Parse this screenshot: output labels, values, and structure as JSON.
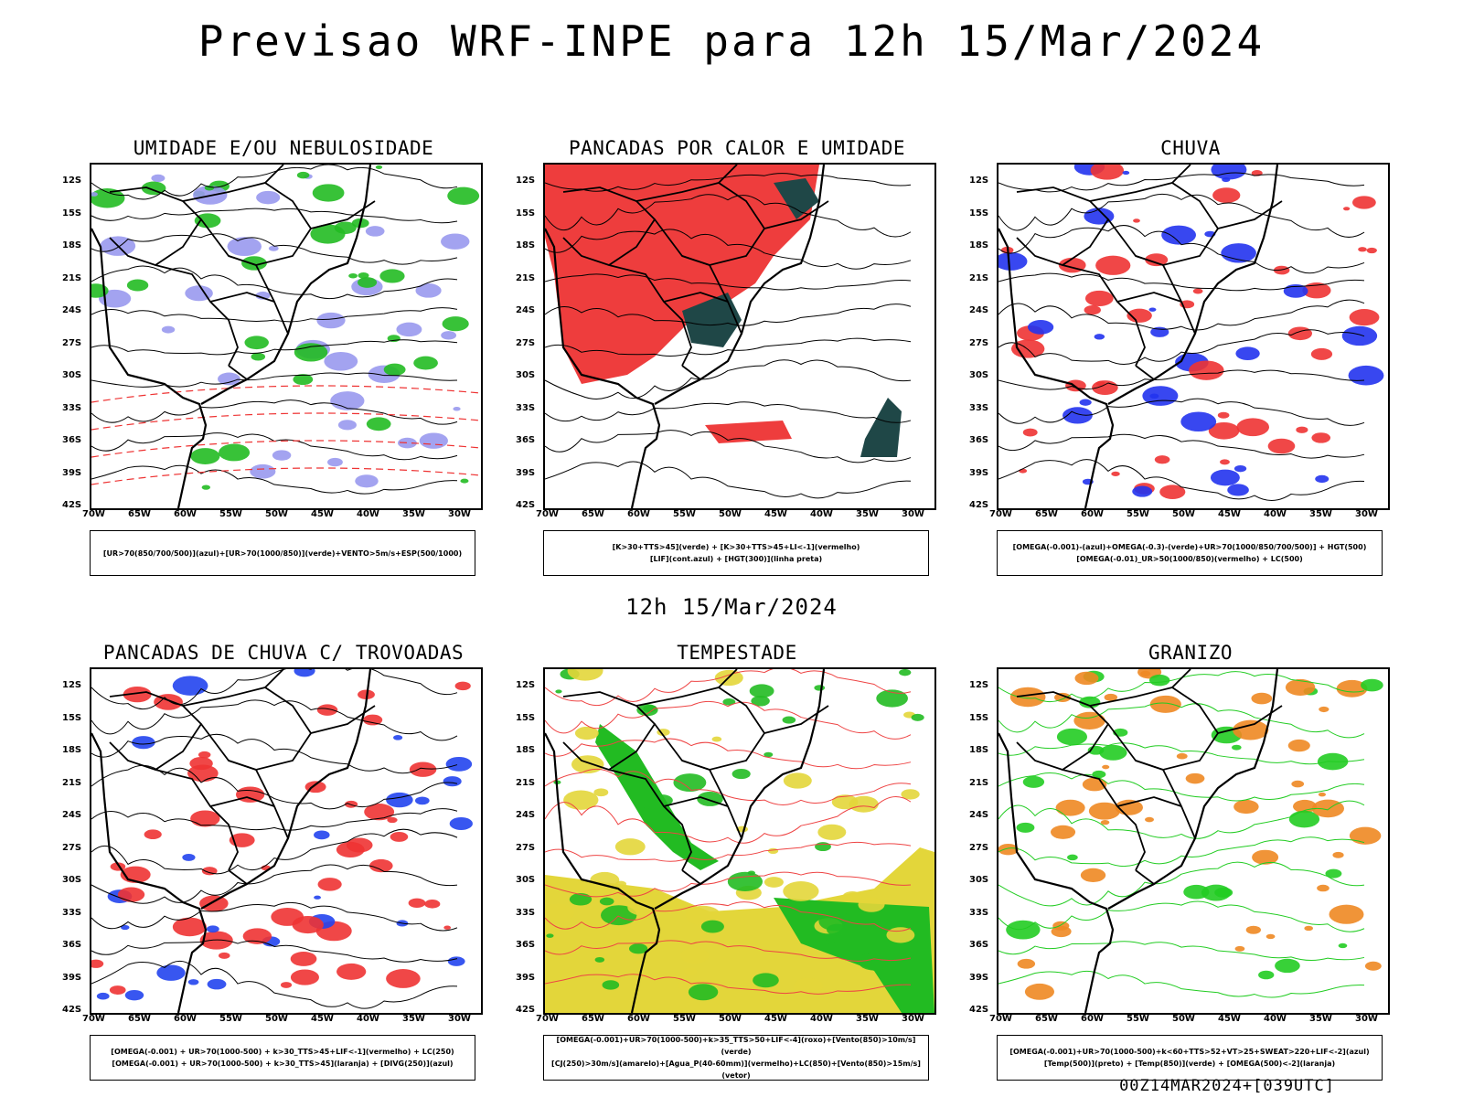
{
  "title": "Previsao WRF-INPE  para 12h 15/Mar/2024",
  "subtitle": "12h 15/Mar/2024",
  "footer": "00Z14MAR2024+[039UTC]",
  "axis": {
    "lat_labels": [
      "12S",
      "15S",
      "18S",
      "21S",
      "24S",
      "27S",
      "30S",
      "33S",
      "36S",
      "39S",
      "42S"
    ],
    "lon_labels": [
      "70W",
      "65W",
      "60W",
      "55W",
      "50W",
      "45W",
      "40W",
      "35W",
      "30W"
    ]
  },
  "panels": [
    {
      "id": "umidade",
      "title": "UMIDADE E/OU NEBULOSIDADE",
      "legend": [
        "[UR>70(850/700/500)](azul)+[UR>70(1000/850)](verde)+VENTO>5m/s+ESP(500/1000)"
      ],
      "colors": [
        "#9999ee",
        "#22bb22",
        "#ee3333"
      ]
    },
    {
      "id": "pancadas",
      "title": "PANCADAS POR CALOR E UMIDADE",
      "legend": [
        "[K>30+TTS>45](verde) + [K>30+TTS>45+LI<-1](vermelho)",
        "[LIF](cont.azul) + [HGT(300)](linha preta)"
      ],
      "colors": [
        "#ee3d3d",
        "#1f4747",
        "#3344ee"
      ]
    },
    {
      "id": "chuva",
      "title": "CHUVA",
      "legend": [
        "[OMEGA(-0.001)-(azul)+OMEGA(-0.3)-(verde)+UR>70(1000/850/700/500)] + HGT(500)",
        "[OMEGA(-0.01)_UR>50(1000/850)(vermelho) + LC(500)"
      ],
      "colors": [
        "#ee3333",
        "#2233ee",
        "#22bb22"
      ]
    },
    {
      "id": "trovoadas",
      "title": "PANCADAS DE CHUVA C/ TROVOADAS",
      "legend": [
        "[OMEGA(-0.001) + UR>70(1000-500) + k>30_TTS>45+LIF<-1](vermelho) + LC(250)",
        "[OMEGA(-0.001) + UR>70(1000-500) + k>30_TTS>45](laranja) + [DIVG(250)](azul)"
      ],
      "colors": [
        "#ee3333",
        "#2244ee",
        "#ee8822"
      ]
    },
    {
      "id": "tempestade",
      "title": "TEMPESTADE",
      "legend": [
        "[OMEGA(-0.001)+UR>70(1000-500)+k>35_TTS>50+LIF<-4](roxo)+[Vento(850)>10m/s](verde)",
        "[CJ(250)>30m/s](amarelo)+[Agua_P(40-60mm)](vermelho)+LC(850)+[Vento(850)>15m/s](vetor)"
      ],
      "colors": [
        "#e3d63a",
        "#22bb22",
        "#ee4444"
      ]
    },
    {
      "id": "granizo",
      "title": "GRANIZO",
      "legend": [
        "[OMEGA(-0.001)+UR>70(1000-500)+k<60+TTS>52+VT>25+SWEAT>220+LIF<-2](azul)",
        "[Temp(500)](preto) + [Temp(850)](verde) + [OMEGA(500)<-2](laranja)"
      ],
      "colors": [
        "#22cc22",
        "#ee8822",
        "#000000"
      ]
    }
  ]
}
